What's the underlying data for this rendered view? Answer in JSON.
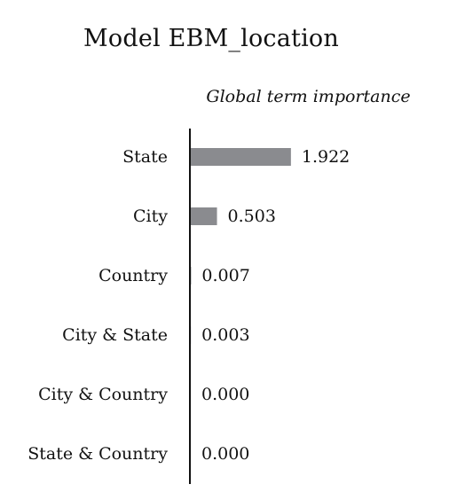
{
  "chart_data": {
    "type": "bar",
    "orientation": "horizontal",
    "title": "Model EBM_location",
    "subtitle": "Global term importance",
    "categories": [
      "State",
      "City",
      "Country",
      "City & State",
      "City & Country",
      "State & Country"
    ],
    "values": [
      1.922,
      0.503,
      0.007,
      0.003,
      0.0,
      0.0
    ],
    "value_labels": [
      "1.922",
      "0.503",
      "0.007",
      "0.003",
      "0.000",
      "0.000"
    ],
    "xlim": [
      0,
      4.7
    ],
    "grid": false,
    "legend": "none",
    "colors": {
      "bar": "#8a8b8f",
      "axis": "#111111",
      "text": "#111111"
    }
  }
}
